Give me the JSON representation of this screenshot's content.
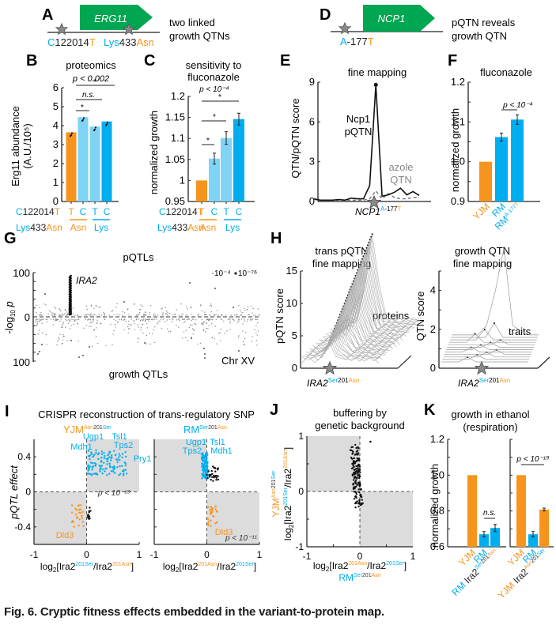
{
  "colors": {
    "orange": "#F7941D",
    "lightblue": "#7FD3F5",
    "blue": "#00AEEF",
    "green": "#00A651",
    "gray": "#888888",
    "shade": "#DCDCDC"
  },
  "caption": {
    "label": "Fig. 6.",
    "text": "Cryptic fitness effects embedded in the variant-to-protein map."
  },
  "panelA": {
    "letter": "A",
    "gene": "ERG11",
    "desc_line1": "two linked",
    "desc_line2": "growth QTNs",
    "var1_ref": "C",
    "var1_pos": "122014",
    "var1_alt": "T",
    "var2_ref": "Lys",
    "var2_pos": "433",
    "var2_alt": "Asn"
  },
  "panelD": {
    "letter": "D",
    "gene": "NCP1",
    "desc_line1": "pQTN reveals",
    "desc_line2": "growth QTN",
    "var_ref": "A",
    "var_pos": "-177",
    "var_alt": "T"
  },
  "chart_data": [
    {
      "panel": "B",
      "type": "bar",
      "title": "proteomics",
      "ylabel_line1": "Erg11 abundance",
      "ylabel_line2": "(A.U./10⁵)",
      "ylim": [
        0,
        6
      ],
      "yticks": [
        "0",
        "1",
        "2",
        "3",
        "4",
        "5",
        "6"
      ],
      "categories": [
        "T",
        "C",
        "T",
        "C"
      ],
      "group_labels": [
        "Asn",
        "Lys"
      ],
      "row1_label": {
        "ref": "C",
        "pos": "122014",
        "alt": "T"
      },
      "row2_label": {
        "ref": "Lys",
        "pos": "433",
        "alt": "Asn"
      },
      "values": [
        3.65,
        4.45,
        3.95,
        4.22
      ],
      "bar_colors": [
        "orange",
        "lightblue",
        "lightblue",
        "blue"
      ],
      "annotations": {
        "pvalue": "p < 0.002",
        "ns": "n.s.",
        "star": "*"
      }
    },
    {
      "panel": "C",
      "type": "bar",
      "title_line1": "sensitivity to",
      "title_line2": "fluconazole",
      "ylabel": "normalized growth",
      "ylim": [
        0.95,
        1.2
      ],
      "yticks": [
        "0.95",
        "1",
        "1.05",
        "1.1",
        "1.15",
        "1.2"
      ],
      "categories": [
        "T",
        "C",
        "T",
        "C"
      ],
      "group_labels": [
        "Asn",
        "Lys"
      ],
      "values": [
        1.0,
        1.052,
        1.101,
        1.146
      ],
      "errors": [
        0.0,
        0.013,
        0.015,
        0.014
      ],
      "bar_colors": [
        "orange",
        "lightblue",
        "lightblue",
        "blue"
      ],
      "annotations": {
        "pvalue": "p < 10⁻⁴",
        "star": "*"
      }
    },
    {
      "panel": "E",
      "type": "line",
      "title": "fine mapping",
      "ylabel": "QTN/pQTN score",
      "ylim": [
        0,
        9
      ],
      "yticks": [
        "0",
        "3",
        "6",
        "9"
      ],
      "series": [
        {
          "name": "Ncp1 pQTN",
          "values": [
            0.2,
            0.1,
            0.1,
            0.1,
            0.15,
            0.1,
            0.25,
            0.2,
            0.2,
            1.2,
            8.8,
            0.4,
            0.5,
            0.7,
            1.0,
            0.5,
            0.75,
            0.45
          ]
        },
        {
          "name": "azole QTN",
          "values": [
            0.15,
            0.1,
            0.1,
            0.1,
            0.1,
            0.1,
            0.1,
            0.1,
            0.1,
            0.2,
            0.8,
            0.2,
            0.6,
            0.3,
            0.2,
            0.2,
            0.3,
            0.3
          ]
        }
      ],
      "labels": {
        "pqtn_line1": "Ncp1",
        "pqtn_line2": "pQTN",
        "qtn_line1": "azole",
        "qtn_line2": "QTN",
        "xlabel_gene": "NCP1",
        "xlabel_ref": "A",
        "xlabel_pos": "-177",
        "xlabel_alt": "T"
      }
    },
    {
      "panel": "F",
      "type": "bar",
      "title": "fluconazole",
      "ylabel": "normalized growth",
      "ylim": [
        0.9,
        1.2
      ],
      "yticks": [
        "0.9",
        "1.0",
        "1.1",
        "1.2"
      ],
      "categories": [
        "YJM",
        "RM",
        "RM A-177T"
      ],
      "values": [
        1.0,
        1.062,
        1.106
      ],
      "errors": [
        0.0,
        0.01,
        0.012
      ],
      "bar_colors": [
        "orange",
        "blue",
        "blue"
      ],
      "annotations": {
        "pvalue": "p < 10⁻⁴"
      }
    },
    {
      "panel": "G",
      "type": "scatter",
      "title_top": "pQTLs",
      "title_bottom": "growth QTLs",
      "ylabel": "-log10 p",
      "ylim_top": [
        0,
        100
      ],
      "ylim_bottom": [
        0,
        100
      ],
      "yticks": [
        "100",
        "0",
        "100"
      ],
      "highlight_label": "IRA2",
      "chr_label": "Chr XV",
      "legend": [
        "10⁻⁴",
        "10⁻⁷⁶"
      ]
    },
    {
      "panel": "H1",
      "type": "line",
      "title_line1": "trans pQTN",
      "title_line2": "fine mapping",
      "ylabel": "pQTN score",
      "ylim": [
        0,
        15
      ],
      "yticks": [
        "0",
        "5",
        "10",
        "15"
      ],
      "series_label": "proteins",
      "xlabel_gene": "IRA2",
      "xlabel_ref": "Ser",
      "xlabel_pos": "201",
      "xlabel_alt": "Asn"
    },
    {
      "panel": "H2",
      "type": "line",
      "title_line1": "growth QTN",
      "title_line2": "fine mapping",
      "ylabel": "QTN score",
      "ylim": [
        0,
        5
      ],
      "yticks": [
        "0",
        "2",
        "4"
      ],
      "series_label": "traits",
      "xlabel_gene": "IRA2",
      "xlabel_ref": "Ser",
      "xlabel_pos": "201",
      "xlabel_alt": "Asn"
    },
    {
      "panel": "I",
      "type": "scatter",
      "title": "CRISPR reconstruction of trans-regulatory SNP",
      "ylabel": "pQTL effect",
      "xlim": [
        -1,
        1
      ],
      "ylim": [
        -0.6,
        0.6
      ],
      "xticks": [
        "-1",
        "0",
        "1"
      ],
      "yticks": [
        "-0.4",
        "0",
        "0.4"
      ],
      "left": {
        "strain": "YJM",
        "sup_a": "Asn",
        "sup_pos": "201",
        "sup_b": "Ser",
        "pvalue": "p < 10⁻¹⁹",
        "genes": [
          "Ugp1",
          "Tsl1",
          "Tps2",
          "Mdh1",
          "Pry1",
          "Dld3"
        ],
        "xlabel": "log₂[Ira2²⁰¹ˢᵉʳ/Ira2²⁰¹ᴬˢⁿ]"
      },
      "right": {
        "strain": "RM",
        "sup_a": "Ser",
        "sup_pos": "201",
        "sup_b": "Asn",
        "pvalue": "p < 10⁻¹¹",
        "genes": [
          "Ugp1",
          "Tsl1",
          "Tps2",
          "Mdh1",
          "Dld3"
        ],
        "xlabel": "log₂[Ira2²⁰¹ᴬˢⁿ/Ira2²⁰¹ˢᵉʳ]"
      }
    },
    {
      "panel": "J",
      "type": "scatter",
      "title_line1": "buffering by",
      "title_line2": "genetic background",
      "xlim": [
        -1,
        1
      ],
      "ylim": [
        -1,
        1
      ],
      "xticks": [
        "-1",
        "0",
        "1"
      ],
      "yticks": [
        "-1",
        "0",
        "1"
      ],
      "xlabel_strain": "RM",
      "ylabel_strain": "YJM"
    },
    {
      "panel": "K",
      "type": "bar",
      "title_line1": "growth in ethanol",
      "title_line2": "(respiration)",
      "ylabel": "normalized growth",
      "ylim": [
        0.6,
        1.2
      ],
      "yticks": [
        "0.6",
        "0.8",
        "1.0",
        "1.2"
      ],
      "groups": [
        {
          "categories": [
            "YJM",
            "RM",
            "RM Ira2 Ser201Asn"
          ],
          "values": [
            1.0,
            0.67,
            0.705
          ],
          "errors": [
            0,
            0.015,
            0.02
          ],
          "bar_colors": [
            "orange",
            "blue",
            "blue"
          ],
          "annotation": "n.s."
        },
        {
          "categories": [
            "YJM",
            "RM",
            "YJM Ira2 Asn201Ser"
          ],
          "values": [
            1.0,
            0.67,
            0.808
          ],
          "errors": [
            0,
            0.015,
            0.008
          ],
          "bar_colors": [
            "orange",
            "blue",
            "orange"
          ],
          "annotation": "p < 10⁻¹⁹"
        }
      ]
    }
  ]
}
